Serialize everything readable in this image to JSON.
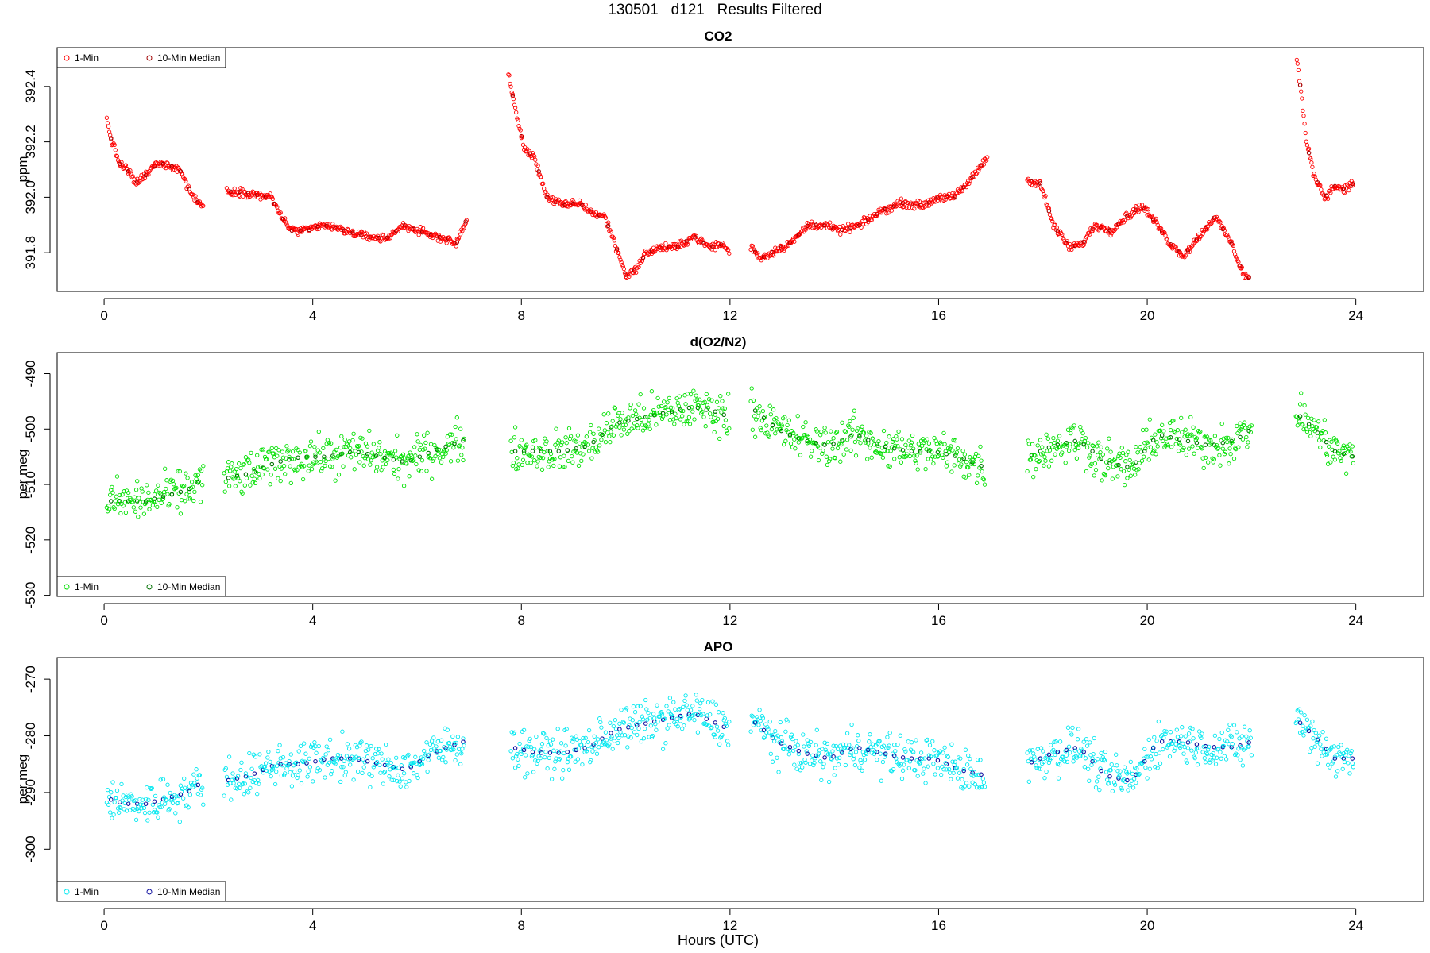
{
  "page": {
    "title": "130501   d121   Results Filtered",
    "xlabel": "Hours (UTC)"
  },
  "chart_data": [
    {
      "type": "scatter",
      "title": "CO2",
      "ylabel": "ppm",
      "xlim": [
        -0.9,
        25.3
      ],
      "ylim": [
        391.66,
        392.54
      ],
      "x_ticks": [
        0,
        4,
        8,
        12,
        16,
        20,
        24
      ],
      "y_ticks": [
        391.8,
        392.0,
        392.2,
        392.4
      ],
      "y_tick_labels": [
        "391.8",
        "392.0",
        "392.2",
        "392.4"
      ],
      "legend": {
        "position": "top-left",
        "labels": [
          "1-Min",
          "10-Min Median"
        ]
      },
      "series": [
        {
          "name": "1-Min",
          "color": "#ff0000",
          "segments": [
            {
              "x": [
                0.05,
                0.15,
                0.3,
                0.45,
                0.6,
                0.8,
                1.0,
                1.2,
                1.45,
                1.6,
                1.75,
                1.9
              ],
              "y": [
                392.28,
                392.2,
                392.12,
                392.1,
                392.05,
                392.08,
                392.12,
                392.12,
                392.1,
                392.04,
                391.99,
                391.97
              ]
            },
            {
              "x": [
                2.35,
                2.6,
                2.9,
                3.2,
                3.4,
                3.6,
                3.9,
                4.2,
                4.6,
                5.0,
                5.4,
                5.75,
                6.0,
                6.3,
                6.6,
                6.75,
                6.95
              ],
              "y": [
                392.02,
                392.02,
                392.01,
                392.0,
                391.93,
                391.88,
                391.88,
                391.9,
                391.88,
                391.86,
                391.85,
                391.9,
                391.88,
                391.86,
                391.85,
                391.83,
                391.92
              ]
            },
            {
              "x": [
                7.75,
                7.9,
                8.05,
                8.25,
                8.5,
                8.8,
                9.1,
                9.4,
                9.6,
                9.8,
                10.0,
                10.15,
                10.4,
                10.7,
                11.0,
                11.3,
                11.6,
                11.85,
                12.0
              ],
              "y": [
                392.45,
                392.3,
                392.18,
                392.14,
                392.0,
                391.97,
                391.98,
                391.94,
                391.93,
                391.83,
                391.72,
                391.73,
                391.8,
                391.82,
                391.82,
                391.86,
                391.82,
                391.83,
                391.8
              ]
            },
            {
              "x": [
                12.4,
                12.6,
                12.8,
                13.0,
                13.2,
                13.5,
                13.8,
                14.1,
                14.5,
                14.9,
                15.3,
                15.7,
                16.0,
                16.3,
                16.6,
                16.95
              ],
              "y": [
                391.82,
                391.78,
                391.8,
                391.82,
                391.84,
                391.9,
                391.9,
                391.88,
                391.9,
                391.95,
                391.98,
                391.97,
                392.0,
                392.0,
                392.06,
                392.15
              ]
            },
            {
              "x": [
                17.7,
                17.95,
                18.2,
                18.5,
                18.75,
                19.0,
                19.3,
                19.6,
                19.9,
                20.2,
                20.45,
                20.7,
                21.0,
                21.3,
                21.6,
                21.85,
                21.95
              ],
              "y": [
                392.06,
                392.05,
                391.9,
                391.82,
                391.83,
                391.9,
                391.88,
                391.93,
                391.97,
                391.9,
                391.83,
                391.79,
                391.86,
                391.93,
                391.84,
                391.72,
                391.71
              ]
            },
            {
              "x": [
                22.85,
                22.95,
                23.05,
                23.2,
                23.4,
                23.6,
                23.8,
                23.95
              ],
              "y": [
                392.53,
                392.38,
                392.2,
                392.08,
                392.0,
                392.04,
                392.03,
                392.05
              ]
            }
          ]
        },
        {
          "name": "10-Min Median",
          "color": "#a00000",
          "segments": []
        }
      ]
    },
    {
      "type": "scatter",
      "title": "d(O2/N2)",
      "ylabel": "per meg",
      "xlim": [
        -0.9,
        25.3
      ],
      "ylim": [
        -530.2,
        -486.2
      ],
      "x_ticks": [
        0,
        4,
        8,
        12,
        16,
        20,
        24
      ],
      "y_ticks": [
        -530,
        -520,
        -510,
        -500,
        -490
      ],
      "y_tick_labels": [
        "-530",
        "-520",
        "-510",
        "-500",
        "-490"
      ],
      "legend": {
        "position": "bottom-left",
        "labels": [
          "1-Min",
          "10-Min Median"
        ]
      },
      "series": [
        {
          "name": "1-Min",
          "color": "#00e000",
          "segments": [
            {
              "x": [
                0.05,
                0.4,
                0.8,
                1.2,
                1.6,
                1.9
              ],
              "y": [
                -513,
                -513,
                -513,
                -512,
                -511,
                -509
              ]
            },
            {
              "x": [
                2.3,
                2.8,
                3.3,
                3.8,
                4.3,
                4.8,
                5.3,
                5.8,
                6.3,
                6.9
              ],
              "y": [
                -509,
                -508,
                -506,
                -505,
                -505,
                -504,
                -505,
                -506,
                -504,
                -502
              ]
            },
            {
              "x": [
                7.8,
                8.3,
                8.8,
                9.3,
                9.8,
                10.3,
                10.8,
                11.3,
                11.8,
                12.0
              ],
              "y": [
                -504,
                -504,
                -504,
                -503,
                -499,
                -498,
                -497,
                -496,
                -497,
                -498
              ]
            },
            {
              "x": [
                12.4,
                12.9,
                13.4,
                13.9,
                14.4,
                14.9,
                15.4,
                15.9,
                16.4,
                16.9
              ],
              "y": [
                -496,
                -500,
                -502,
                -503,
                -501,
                -503,
                -504,
                -504,
                -505,
                -507
              ]
            },
            {
              "x": [
                17.7,
                18.2,
                18.7,
                19.2,
                19.7,
                20.2,
                20.7,
                21.2,
                21.7,
                22.0
              ],
              "y": [
                -505,
                -503,
                -502,
                -506,
                -507,
                -501,
                -502,
                -503,
                -502,
                -500
              ]
            },
            {
              "x": [
                22.85,
                23.2,
                23.6,
                23.95
              ],
              "y": [
                -497,
                -500,
                -504,
                -505
              ]
            }
          ]
        },
        {
          "name": "10-Min Median",
          "color": "#007000",
          "segments": []
        }
      ]
    },
    {
      "type": "scatter",
      "title": "APO",
      "ylabel": "per meg",
      "xlim": [
        -0.9,
        25.3
      ],
      "ylim": [
        -309.2,
        -266.2
      ],
      "x_ticks": [
        0,
        4,
        8,
        12,
        16,
        20,
        24
      ],
      "y_ticks": [
        -300,
        -290,
        -280,
        -270
      ],
      "y_tick_labels": [
        "-300",
        "-290",
        "-280",
        "-270"
      ],
      "legend": {
        "position": "bottom-left",
        "labels": [
          "1-Min",
          "10-Min Median"
        ]
      },
      "series": [
        {
          "name": "1-Min",
          "color": "#00e8f0",
          "segments": [
            {
              "x": [
                0.05,
                0.4,
                0.8,
                1.2,
                1.6,
                1.9
              ],
              "y": [
                -291,
                -292,
                -292,
                -291,
                -290,
                -288
              ]
            },
            {
              "x": [
                2.3,
                2.8,
                3.3,
                3.8,
                4.3,
                4.8,
                5.3,
                5.8,
                6.3,
                6.9
              ],
              "y": [
                -288,
                -287,
                -285,
                -285,
                -284,
                -284,
                -285,
                -286,
                -283,
                -281
              ]
            },
            {
              "x": [
                7.8,
                8.3,
                8.8,
                9.3,
                9.8,
                10.3,
                10.8,
                11.3,
                11.8,
                12.0
              ],
              "y": [
                -282,
                -283,
                -283,
                -282,
                -279,
                -278,
                -277,
                -276,
                -278,
                -279
              ]
            },
            {
              "x": [
                12.4,
                12.9,
                13.4,
                13.9,
                14.4,
                14.9,
                15.4,
                15.9,
                16.4,
                16.9
              ],
              "y": [
                -277,
                -281,
                -283,
                -284,
                -282,
                -283,
                -284,
                -284,
                -286,
                -287
              ]
            },
            {
              "x": [
                17.7,
                18.2,
                18.7,
                19.2,
                19.7,
                20.2,
                20.7,
                21.2,
                21.7,
                22.0
              ],
              "y": [
                -285,
                -283,
                -282,
                -287,
                -288,
                -281,
                -281,
                -282,
                -282,
                -281
              ]
            },
            {
              "x": [
                22.85,
                23.2,
                23.6,
                23.95
              ],
              "y": [
                -277,
                -280,
                -284,
                -284
              ]
            }
          ]
        },
        {
          "name": "10-Min Median",
          "color": "#1010a0",
          "segments": []
        }
      ]
    }
  ]
}
